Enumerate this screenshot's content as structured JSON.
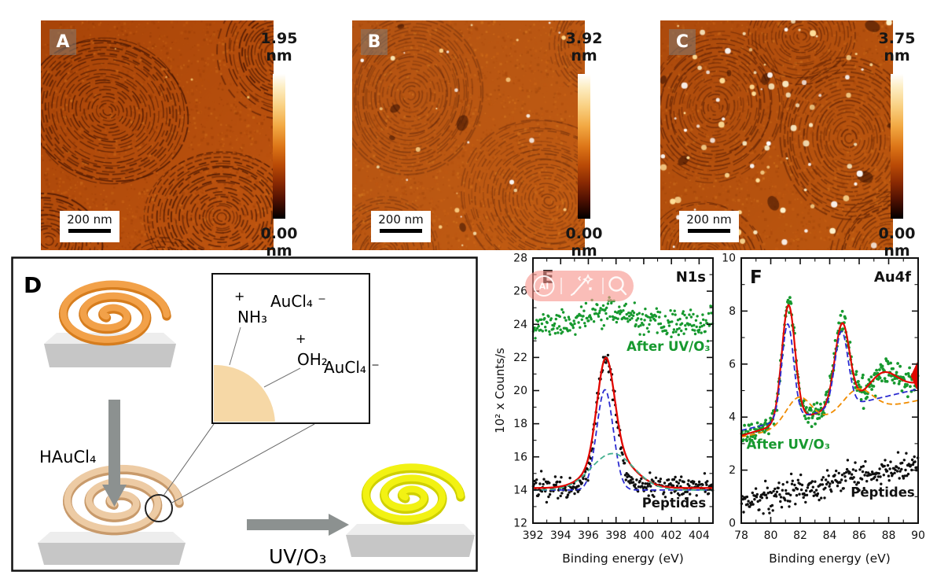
{
  "afm_panels": [
    {
      "label": "A",
      "scale_bar": "200 nm",
      "height_max": "1.95 nm",
      "height_min": "0.00 nm"
    },
    {
      "label": "B",
      "scale_bar": "200 nm",
      "height_max": "3.92 nm",
      "height_min": "0.00 nm"
    },
    {
      "label": "C",
      "scale_bar": "200 nm",
      "height_max": "3.75 nm",
      "height_min": "0.00 nm"
    }
  ],
  "schematic": {
    "label": "D",
    "step1_label": "HAuCl₄",
    "step2_label": "UV/O₃",
    "inset": {
      "plus1": "+",
      "group1": "NH₃",
      "counter1": "AuCl₄ ⁻",
      "plus2": "+",
      "group2": "OH₂",
      "counter2": "AuCl₄ ⁻"
    }
  },
  "overlay": {
    "ai_label": "AI",
    "icons": [
      "ai-badge",
      "magic-pen",
      "search"
    ],
    "color": "#f7948d"
  },
  "chart_data": [
    {
      "panel": "E",
      "type": "scatter",
      "title": "N1s",
      "xlabel": "Binding energy (eV)",
      "ylabel": "10² x Counts/s",
      "xlim": [
        392,
        405
      ],
      "ylim": [
        12,
        28
      ],
      "xticks": [
        392,
        394,
        396,
        398,
        400,
        402,
        404
      ],
      "yticks": [
        12,
        14,
        16,
        18,
        20,
        22,
        24,
        26,
        28
      ],
      "annotations": [
        {
          "text": "After UV/O₃",
          "x": 404.8,
          "y": 22.4,
          "color": "#17992f",
          "align": "right"
        },
        {
          "text": "Peptides",
          "x": 404.5,
          "y": 12.95,
          "color": "#111111",
          "align": "right"
        }
      ],
      "series": [
        {
          "name": "After UV/O3 scatter",
          "kind": "scatter",
          "color": "#17992f",
          "n": 270,
          "noise": 0.38,
          "seed": 11,
          "baseline": 24.0,
          "slope": 0,
          "peaks": [
            {
              "center": 397.4,
              "amp": 0.85,
              "sigma": 1.3
            }
          ]
        },
        {
          "name": "Peptides scatter",
          "kind": "scatter",
          "color": "#101010",
          "n": 270,
          "noise": 0.3,
          "seed": 22,
          "baseline": 14.2,
          "slope": 0,
          "peaks": [
            {
              "center": 397.3,
              "amp": 7.8,
              "sigma": 0.68
            }
          ]
        },
        {
          "name": "fit envelope",
          "kind": "line",
          "color": "#e10600",
          "width": 2.3,
          "baseline": 14.12,
          "slope": 0,
          "peaks": [
            {
              "center": 397.25,
              "amp": 5.95,
              "sigma": 0.62
            },
            {
              "center": 397.7,
              "amp": 2.0,
              "sigma": 1.5
            }
          ]
        },
        {
          "name": "component 1",
          "kind": "dash",
          "color": "#2b2bd0",
          "width": 1.8,
          "baseline": 14.0,
          "slope": 0,
          "peaks": [
            {
              "center": 397.2,
              "amp": 6.05,
              "sigma": 0.6
            }
          ]
        },
        {
          "name": "component 2",
          "kind": "dash",
          "color": "#43b08e",
          "width": 1.8,
          "baseline": 14.0,
          "slope": 0,
          "peaks": [
            {
              "center": 397.75,
              "amp": 2.2,
              "sigma": 1.55
            }
          ]
        }
      ]
    },
    {
      "panel": "F",
      "type": "scatter",
      "title": "Au4f",
      "xlabel": "Binding energy (eV)",
      "ylabel": "",
      "xlim": [
        78,
        90
      ],
      "ylim": [
        0,
        10
      ],
      "xticks": [
        78,
        80,
        82,
        84,
        86,
        88,
        90
      ],
      "yticks": [
        0,
        2,
        4,
        6,
        8,
        10
      ],
      "annotations": [
        {
          "text": "After UV/O₃",
          "x": 78.35,
          "y": 2.8,
          "color": "#17992f",
          "align": "left"
        },
        {
          "text": "Peptides",
          "x": 87.6,
          "y": 1.0,
          "color": "#111111",
          "align": "center"
        }
      ],
      "series": [
        {
          "name": "Peptides scatter",
          "kind": "scatter",
          "color": "#101010",
          "n": 260,
          "noise": 0.26,
          "seed": 33,
          "baseline": 0.75,
          "slope": 0.125,
          "peaks": []
        },
        {
          "name": "After UV/O3 scatter",
          "kind": "scatter",
          "color": "#17992f",
          "n": 300,
          "noise": 0.22,
          "seed": 44,
          "r": 1.9,
          "baseline": 3.3,
          "slope": 0.165,
          "peaks": [
            {
              "center": 81.2,
              "amp": 4.4,
              "sigma": 0.45
            },
            {
              "center": 84.85,
              "amp": 3.1,
              "sigma": 0.5
            },
            {
              "center": 87.6,
              "amp": 0.8,
              "sigma": 0.95
            }
          ]
        },
        {
          "name": "fit envelope",
          "kind": "line",
          "color": "#e10600",
          "width": 2.2,
          "baseline": 3.3,
          "slope": 0.165,
          "peaks": [
            {
              "center": 81.2,
              "amp": 4.4,
              "sigma": 0.45
            },
            {
              "center": 84.85,
              "amp": 3.1,
              "sigma": 0.5
            },
            {
              "center": 87.6,
              "amp": 0.8,
              "sigma": 0.95
            }
          ]
        },
        {
          "name": "Au doublet components",
          "kind": "dash",
          "color": "#2b2bd0",
          "width": 1.8,
          "baseline": 3.5,
          "slope": 0.13,
          "peaks": [
            {
              "center": 81.15,
              "amp": 3.6,
              "sigma": 0.4
            },
            {
              "center": 84.8,
              "amp": 2.85,
              "sigma": 0.45
            }
          ]
        },
        {
          "name": "background components",
          "kind": "dash",
          "color": "#f08c00",
          "width": 1.8,
          "baseline": 3.25,
          "slope": 0.115,
          "peaks": [
            {
              "center": 81.9,
              "amp": 1.05,
              "sigma": 0.85
            },
            {
              "center": 85.9,
              "amp": 0.9,
              "sigma": 1.0
            }
          ]
        },
        {
          "name": "edge artifact",
          "kind": "polygon",
          "color": "#e10600",
          "points": [
            [
              89.5,
              5.55
            ],
            [
              90,
              6.15
            ],
            [
              90,
              4.95
            ]
          ]
        }
      ]
    }
  ]
}
